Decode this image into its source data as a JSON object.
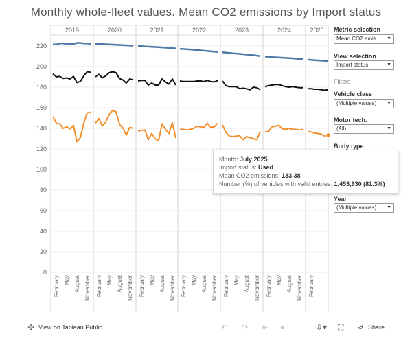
{
  "title": "Monthly whole-fleet values. Mean CO2 emissions by Import status",
  "chart_data": {
    "type": "line",
    "title": "Monthly whole-fleet values. Mean CO2 emissions by Import status",
    "ylim": [
      0,
      230
    ],
    "y_ticks": [
      "0",
      "20",
      "40",
      "60",
      "80",
      "100",
      "120",
      "140",
      "160",
      "180",
      "200",
      "220"
    ],
    "years": [
      "2019",
      "2020",
      "2021",
      "2022",
      "2023",
      "2024",
      "2025"
    ],
    "month_tick_labels": [
      "February",
      "May",
      "August",
      "November"
    ],
    "month_tick_labels_2025": [
      "February"
    ],
    "grid": true,
    "series": [
      {
        "key": "top",
        "color": "#4e79a7",
        "values": [
          [
            221.5,
            221.5,
            222.5,
            222.5,
            222.0,
            222.0,
            222.0,
            223.0,
            223.0,
            222.5,
            222.5,
            222.0
          ],
          [
            222.0,
            222.0,
            221.8,
            221.7,
            221.5,
            221.3,
            221.2,
            221.0,
            220.8,
            220.6,
            220.5,
            220.2
          ],
          [
            220.0,
            219.8,
            219.6,
            219.4,
            219.2,
            219.0,
            218.8,
            218.6,
            218.4,
            218.1,
            217.9,
            217.6
          ],
          [
            217.3,
            217.0,
            216.8,
            216.6,
            216.3,
            216.0,
            215.7,
            215.4,
            215.1,
            214.8,
            214.5,
            214.2
          ],
          [
            213.8,
            213.5,
            213.2,
            212.9,
            212.6,
            212.3,
            212.0,
            211.7,
            211.4,
            211.1,
            210.6,
            210.2
          ],
          [
            209.8,
            209.5,
            209.2,
            209.0,
            208.8,
            208.6,
            208.4,
            208.2,
            208.0,
            207.7,
            207.4,
            207.1
          ],
          [
            206.8,
            206.5,
            206.2,
            206.0,
            205.7,
            205.5,
            205.2
          ]
        ]
      },
      {
        "key": "middle",
        "color": "#111111",
        "values": [
          [
            193.0,
            190.0,
            190.5,
            188.5,
            189.0,
            188.0,
            190.5,
            184.5,
            185.5,
            191.0,
            195.0,
            194.5
          ],
          [
            190.0,
            192.5,
            189.0,
            191.0,
            194.0,
            195.0,
            194.0,
            188.5,
            187.0,
            184.0,
            188.0,
            187.0
          ],
          [
            186.0,
            186.5,
            186.5,
            182.0,
            184.0,
            182.0,
            182.0,
            188.0,
            185.0,
            183.0,
            188.0,
            182.0
          ],
          [
            186.0,
            185.5,
            185.5,
            185.5,
            185.5,
            186.0,
            186.0,
            185.5,
            186.5,
            185.5,
            185.0,
            186.5
          ],
          [
            186.0,
            181.5,
            180.5,
            180.5,
            180.5,
            178.5,
            179.0,
            178.5,
            177.5,
            180.0,
            179.5,
            177.5
          ],
          [
            180.5,
            181.5,
            182.0,
            182.5,
            182.5,
            181.5,
            180.5,
            180.0,
            180.5,
            180.0,
            179.5,
            179.5
          ],
          [
            178.5,
            178.5,
            178.0,
            178.0,
            177.5,
            177.0,
            177.5
          ]
        ]
      },
      {
        "key": "used",
        "color": "#f28e2b",
        "values": [
          [
            151.5,
            145.0,
            144.5,
            140.0,
            141.5,
            139.5,
            143.0,
            127.0,
            131.0,
            145.0,
            155.0,
            155.5
          ],
          [
            145.0,
            149.5,
            142.5,
            146.0,
            153.5,
            157.5,
            156.0,
            144.0,
            140.5,
            133.5,
            141.0,
            140.0
          ],
          [
            137.5,
            138.0,
            138.5,
            129.0,
            135.0,
            130.0,
            128.0,
            144.5,
            139.0,
            135.0,
            145.5,
            130.5
          ],
          [
            139.0,
            139.0,
            138.5,
            139.0,
            140.0,
            142.0,
            141.5,
            141.0,
            145.0,
            141.0,
            141.5,
            145.0
          ],
          [
            143.5,
            136.0,
            132.5,
            132.0,
            132.5,
            133.0,
            129.0,
            132.0,
            131.0,
            130.0,
            129.0,
            137.0
          ],
          [
            136.5,
            137.0,
            141.5,
            142.0,
            143.0,
            139.5,
            139.0,
            140.0,
            139.0,
            139.0,
            138.5,
            139.0
          ],
          [
            137.0,
            136.5,
            135.5,
            135.0,
            134.5,
            132.5,
            133.38
          ]
        ]
      }
    ]
  },
  "controls": {
    "metric_label": "Metric selection",
    "metric_value": "Mean CO2 emiss...",
    "view_label": "View selection",
    "view_value": "Import status",
    "filters_label": "Filters",
    "vehicle_label": "Vehicle class",
    "vehicle_value": "(Multiple values)",
    "motor_label": "Motor tech.",
    "motor_value": "(All)",
    "body_label": "Body type",
    "year_label": "Year",
    "year_value": "(Multiple values)"
  },
  "tooltip": {
    "month_label": "Month:",
    "month_value": "July 2025",
    "import_label": "Import status:",
    "import_value": "Used",
    "mean_label": "Mean CO2 emissions:",
    "mean_value": "133.38",
    "number_label": "Number (%) of vehicles with valid entries:",
    "number_value": "1,453,930 (81.3%)"
  },
  "toolbar": {
    "view_on": "View on Tableau Public",
    "share": "Share"
  }
}
